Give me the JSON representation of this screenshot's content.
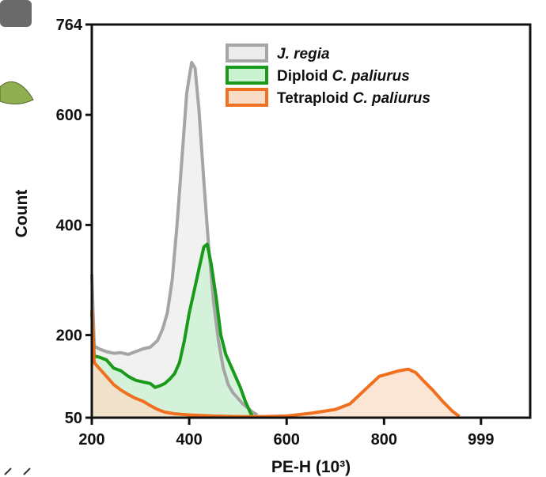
{
  "chart_data": {
    "type": "area",
    "xlabel": "PE-H (10³)",
    "ylabel": "Count",
    "xlim": [
      200,
      1100
    ],
    "ylim": [
      50,
      764
    ],
    "x_ticks": [
      "200",
      "400",
      "600",
      "800",
      "999"
    ],
    "x_tick_values": [
      200,
      400,
      600,
      800,
      999
    ],
    "y_ticks": [
      "50",
      "200",
      "400",
      "600",
      "764"
    ],
    "y_tick_values": [
      50,
      200,
      400,
      600,
      764
    ],
    "legend_position": "top-center",
    "series": [
      {
        "name": "J. regia",
        "legend_parts": [
          {
            "text": "J. regia",
            "italic": true
          }
        ],
        "line_color": "#a5a5a5",
        "fill_color": "#ececec",
        "points": [
          [
            200,
            310
          ],
          [
            205,
            180
          ],
          [
            215,
            175
          ],
          [
            230,
            170
          ],
          [
            245,
            167
          ],
          [
            260,
            168
          ],
          [
            275,
            165
          ],
          [
            290,
            170
          ],
          [
            305,
            175
          ],
          [
            320,
            178
          ],
          [
            335,
            190
          ],
          [
            345,
            210
          ],
          [
            355,
            240
          ],
          [
            365,
            300
          ],
          [
            375,
            400
          ],
          [
            385,
            520
          ],
          [
            395,
            640
          ],
          [
            405,
            695
          ],
          [
            412,
            685
          ],
          [
            420,
            610
          ],
          [
            430,
            480
          ],
          [
            440,
            360
          ],
          [
            450,
            260
          ],
          [
            460,
            190
          ],
          [
            470,
            140
          ],
          [
            480,
            110
          ],
          [
            490,
            95
          ],
          [
            500,
            85
          ],
          [
            510,
            75
          ],
          [
            520,
            68
          ],
          [
            530,
            60
          ],
          [
            540,
            55
          ]
        ]
      },
      {
        "name": "Diploid C. paliurus",
        "legend_parts": [
          {
            "text": "Diploid ",
            "italic": false
          },
          {
            "text": "C. paliurus",
            "italic": true
          }
        ],
        "line_color": "#1a9a1a",
        "fill_color": "#c9f2d0",
        "points": [
          [
            200,
            240
          ],
          [
            205,
            162
          ],
          [
            215,
            160
          ],
          [
            230,
            155
          ],
          [
            245,
            140
          ],
          [
            260,
            135
          ],
          [
            275,
            125
          ],
          [
            290,
            118
          ],
          [
            305,
            115
          ],
          [
            320,
            112
          ],
          [
            330,
            105
          ],
          [
            340,
            108
          ],
          [
            350,
            112
          ],
          [
            360,
            120
          ],
          [
            370,
            130
          ],
          [
            380,
            150
          ],
          [
            390,
            190
          ],
          [
            400,
            240
          ],
          [
            410,
            280
          ],
          [
            420,
            320
          ],
          [
            430,
            360
          ],
          [
            437,
            365
          ],
          [
            445,
            330
          ],
          [
            455,
            270
          ],
          [
            465,
            200
          ],
          [
            475,
            165
          ],
          [
            490,
            135
          ],
          [
            505,
            105
          ],
          [
            515,
            80
          ],
          [
            525,
            60
          ],
          [
            530,
            52
          ]
        ]
      },
      {
        "name": "Tetraploid C. paliurus",
        "legend_parts": [
          {
            "text": "Tetraploid ",
            "italic": false
          },
          {
            "text": "C. paliurus",
            "italic": true
          }
        ],
        "line_color": "#f07020",
        "fill_color": "#f9dcc6",
        "points": [
          [
            200,
            245
          ],
          [
            205,
            150
          ],
          [
            215,
            140
          ],
          [
            230,
            125
          ],
          [
            245,
            110
          ],
          [
            260,
            100
          ],
          [
            275,
            92
          ],
          [
            290,
            85
          ],
          [
            305,
            80
          ],
          [
            320,
            72
          ],
          [
            335,
            65
          ],
          [
            350,
            60
          ],
          [
            370,
            57
          ],
          [
            400,
            55
          ],
          [
            450,
            53
          ],
          [
            500,
            52
          ],
          [
            550,
            52
          ],
          [
            600,
            53
          ],
          [
            650,
            58
          ],
          [
            700,
            65
          ],
          [
            730,
            75
          ],
          [
            760,
            100
          ],
          [
            790,
            125
          ],
          [
            810,
            130
          ],
          [
            830,
            135
          ],
          [
            850,
            138
          ],
          [
            865,
            132
          ],
          [
            880,
            118
          ],
          [
            900,
            100
          ],
          [
            920,
            80
          ],
          [
            940,
            62
          ],
          [
            955,
            52
          ]
        ]
      }
    ]
  }
}
